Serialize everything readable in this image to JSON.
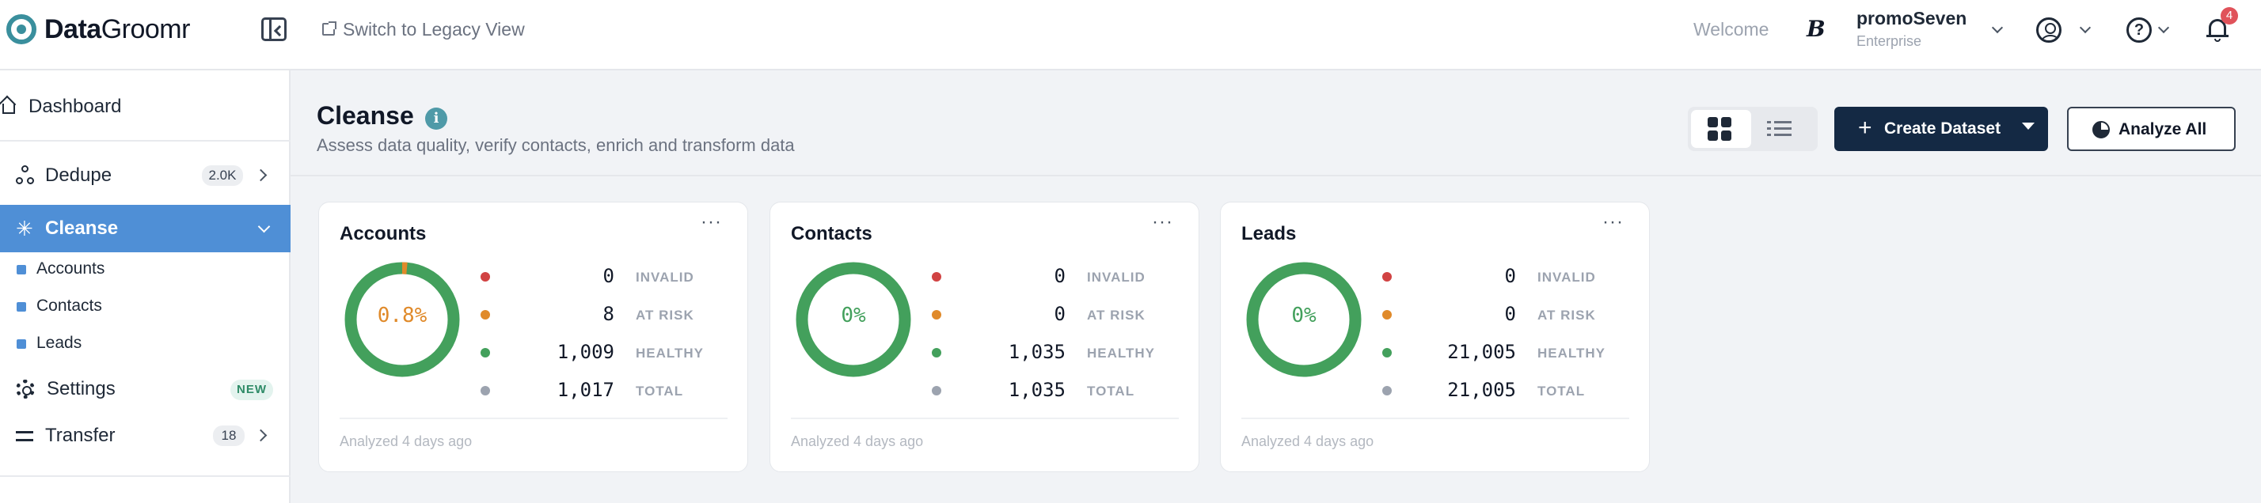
{
  "app": {
    "logo_bold": "Data",
    "logo_light": "Groomr"
  },
  "header": {
    "legacy_label": "Switch to Legacy View",
    "welcome": "Welcome",
    "org_badge": "B",
    "org_name": "promoSeven",
    "org_plan": "Enterprise",
    "notification_count": "4"
  },
  "sidebar": {
    "dashboard": "Dashboard",
    "dedupe": {
      "label": "Dedupe",
      "count": "2.0K"
    },
    "cleanse": {
      "label": "Cleanse",
      "children": [
        "Accounts",
        "Contacts",
        "Leads"
      ]
    },
    "settings": {
      "label": "Settings",
      "badge": "NEW"
    },
    "transfer": {
      "label": "Transfer",
      "count": "18"
    }
  },
  "page": {
    "title": "Cleanse",
    "subtitle": "Assess data quality, verify contacts, enrich and transform data",
    "create_label": "Create Dataset",
    "analyze_label": "Analyze All"
  },
  "colors": {
    "invalid": "#d14343",
    "at_risk": "#e08a2a",
    "healthy": "#43a05c",
    "total": "#9ca3af",
    "accent": "#4f8fd6"
  },
  "cards": [
    {
      "title": "Accounts",
      "pct_label": "0.8%",
      "risk_fraction": 0.008,
      "stats": [
        {
          "value": "0",
          "label": "INVALID"
        },
        {
          "value": "8",
          "label": "AT RISK"
        },
        {
          "value": "1,009",
          "label": "HEALTHY"
        },
        {
          "value": "1,017",
          "label": "TOTAL"
        }
      ],
      "footer": "Analyzed 4 days ago"
    },
    {
      "title": "Contacts",
      "pct_label": "0%",
      "risk_fraction": 0,
      "stats": [
        {
          "value": "0",
          "label": "INVALID"
        },
        {
          "value": "0",
          "label": "AT RISK"
        },
        {
          "value": "1,035",
          "label": "HEALTHY"
        },
        {
          "value": "1,035",
          "label": "TOTAL"
        }
      ],
      "footer": "Analyzed 4 days ago"
    },
    {
      "title": "Leads",
      "pct_label": "0%",
      "risk_fraction": 0,
      "stats": [
        {
          "value": "0",
          "label": "INVALID"
        },
        {
          "value": "0",
          "label": "AT RISK"
        },
        {
          "value": "21,005",
          "label": "HEALTHY"
        },
        {
          "value": "21,005",
          "label": "TOTAL"
        }
      ],
      "footer": "Analyzed 4 days ago"
    }
  ]
}
